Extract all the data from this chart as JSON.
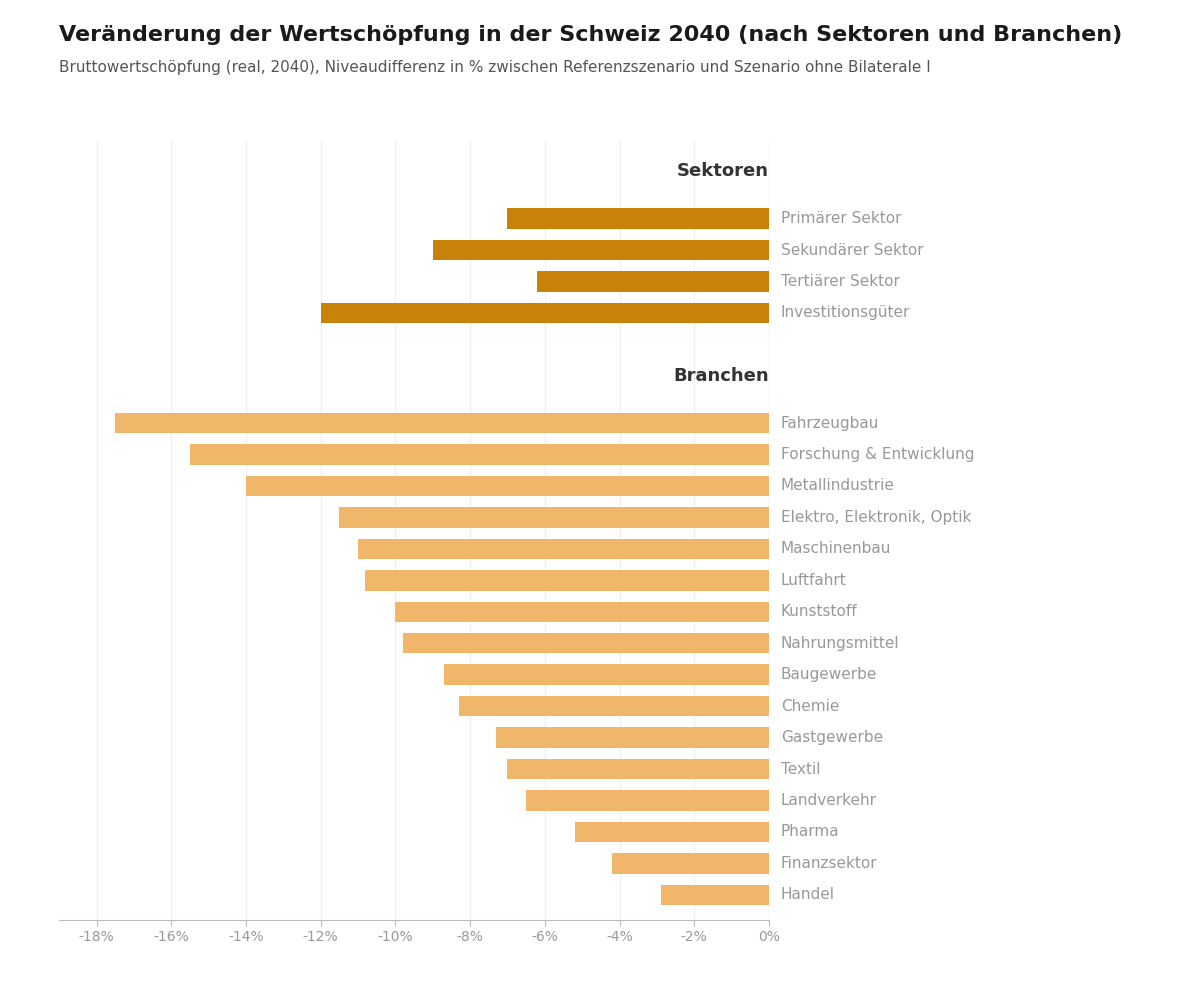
{
  "title": "Veränderung der Wertschöpfung in der Schweiz 2040 (nach Sektoren und Branchen)",
  "subtitle": "Bruttowertschöpfung (real, 2040), Niveaudifferenz in % zwischen Referenzszenario und Szenario ohne Bilaterale I",
  "sektoren_labels": [
    "Primärer Sektor",
    "Sekundärer Sektor",
    "Tertiärer Sektor",
    "Investitionsgüter"
  ],
  "sektoren_values": [
    -7.0,
    -9.0,
    -6.2,
    -12.0
  ],
  "sektoren_color": "#C8820A",
  "branchen_labels": [
    "Fahrzeugbau",
    "Forschung & Entwicklung",
    "Metallindustrie",
    "Elektro, Elektronik, Optik",
    "Maschinenbau",
    "Luftfahrt",
    "Kunststoff",
    "Nahrungsmittel",
    "Baugewerbe",
    "Chemie",
    "Gastgewerbe",
    "Textil",
    "Landverkehr",
    "Pharma",
    "Finanzsektor",
    "Handel"
  ],
  "branchen_values": [
    -17.5,
    -15.5,
    -14.0,
    -11.5,
    -11.0,
    -10.8,
    -10.0,
    -9.8,
    -8.7,
    -8.3,
    -7.3,
    -7.0,
    -6.5,
    -5.2,
    -4.2,
    -2.9
  ],
  "branchen_color": "#F0B76B",
  "xlim": [
    -19,
    0
  ],
  "xticks": [
    -18,
    -16,
    -14,
    -12,
    -10,
    -8,
    -6,
    -4,
    -2,
    0
  ],
  "xticklabels": [
    "-18%",
    "-16%",
    "-14%",
    "-12%",
    "-10%",
    "-8%",
    "-6%",
    "-4%",
    "-2%",
    "0%"
  ],
  "background_color": "#FFFFFF",
  "label_color": "#999999",
  "sektoren_header": "Sektoren",
  "branchen_header": "Branchen",
  "header_color": "#333333",
  "title_fontsize": 16,
  "subtitle_fontsize": 11,
  "label_fontsize": 11,
  "tick_fontsize": 10,
  "bar_height": 0.65,
  "header_fontsize": 13
}
